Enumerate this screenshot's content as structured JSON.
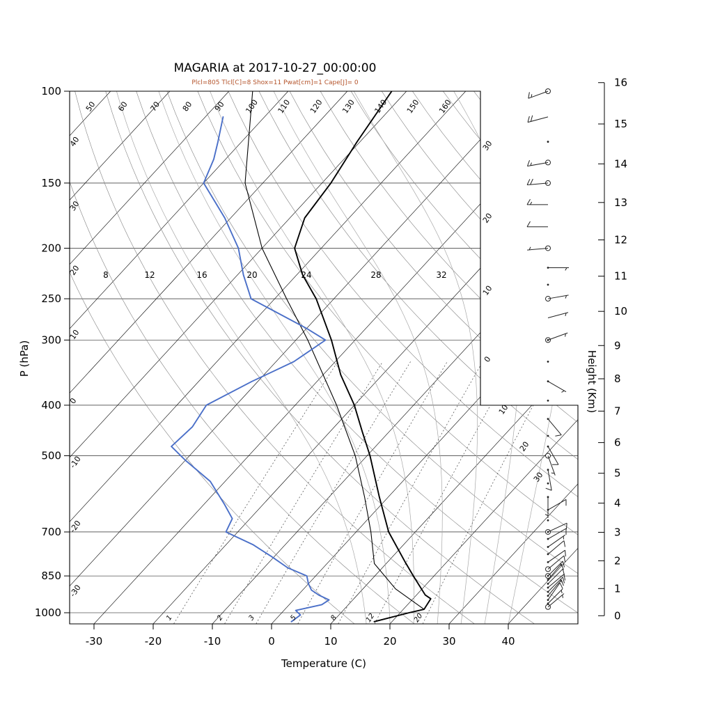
{
  "title": "MAGARIA at 2017-10-27_00:00:00",
  "subtitle": "Plcl=805 Tlcl[C]=8 Shox=11 Pwat[cm]=1 Cape[J]= 0",
  "colors": {
    "subtitle": "#b4532a",
    "temperature_trace": "#000000",
    "parcel_trace": "#000000",
    "dewpoint_trace": "#4a6fc8",
    "grid": "#000000",
    "dry_adiabat": "#808080",
    "moist_adiabat": "#a8a8a8",
    "mixing_ratio": "#444444",
    "barb": "#222222"
  },
  "chart_data": {
    "type": "line",
    "subtype": "skewt_logp_sounding",
    "station": "MAGARIA",
    "datetime": "2017-10-27_00:00:00",
    "params": {
      "Plcl": 805,
      "Tlcl_C": 8,
      "Shox": 11,
      "Pwat_cm": 1,
      "Cape_J": 0
    },
    "axes": {
      "pressure_label": "P (hPa)",
      "pressure_ticks": [
        100,
        150,
        200,
        250,
        300,
        400,
        500,
        700,
        850,
        1000
      ],
      "temperature_label": "Temperature (C)",
      "temperature_ticks": [
        -30,
        -20,
        -10,
        0,
        10,
        20,
        30,
        40
      ],
      "height_label": "Height (Km)",
      "height_ticks": [
        0,
        1,
        2,
        3,
        4,
        5,
        6,
        7,
        8,
        9,
        10,
        11,
        12,
        13,
        14,
        15,
        16
      ]
    },
    "isotherm_left_labels": [
      "40",
      "30",
      "20",
      "10",
      "0",
      "-10",
      "-20",
      "-30"
    ],
    "dry_adiabat_top_labels": [
      "50",
      "60",
      "70",
      "80",
      "90",
      "100",
      "110",
      "120",
      "130",
      "140",
      "150",
      "160"
    ],
    "right_edge_labels": [
      "30",
      "20",
      "10",
      "0",
      "10",
      "20",
      "30"
    ],
    "mid_row_labels": [
      "8",
      "12",
      "16",
      "20",
      "24",
      "28",
      "32"
    ],
    "mixing_ratio_values": [
      1,
      2,
      3,
      5,
      8,
      12,
      20
    ],
    "temperature_profile": [
      {
        "p": 1040,
        "t": 17
      },
      {
        "p": 1000,
        "t": 21.5
      },
      {
        "p": 985,
        "t": 23.5
      },
      {
        "p": 940,
        "t": 23
      },
      {
        "p": 925,
        "t": 21.5
      },
      {
        "p": 850,
        "t": 16.5
      },
      {
        "p": 800,
        "t": 13
      },
      {
        "p": 700,
        "t": 5.5
      },
      {
        "p": 600,
        "t": -1.5
      },
      {
        "p": 500,
        "t": -9.5
      },
      {
        "p": 450,
        "t": -14.5
      },
      {
        "p": 400,
        "t": -20
      },
      {
        "p": 350,
        "t": -27
      },
      {
        "p": 300,
        "t": -34
      },
      {
        "p": 250,
        "t": -43
      },
      {
        "p": 225,
        "t": -49
      },
      {
        "p": 200,
        "t": -54.5
      },
      {
        "p": 175,
        "t": -57.5
      },
      {
        "p": 150,
        "t": -58.5
      },
      {
        "p": 125,
        "t": -60.5
      },
      {
        "p": 100,
        "t": -62.5
      }
    ],
    "parcel_profile": [
      {
        "p": 985,
        "t": 23.5
      },
      {
        "p": 900,
        "t": 15.5
      },
      {
        "p": 805,
        "t": 8
      },
      {
        "p": 700,
        "t": 2.5
      },
      {
        "p": 600,
        "t": -4
      },
      {
        "p": 500,
        "t": -12
      },
      {
        "p": 400,
        "t": -23
      },
      {
        "p": 300,
        "t": -38
      },
      {
        "p": 250,
        "t": -48
      },
      {
        "p": 200,
        "t": -60
      },
      {
        "p": 150,
        "t": -73
      },
      {
        "p": 100,
        "t": -86
      }
    ],
    "dewpoint_profile": [
      {
        "p": 1040,
        "t": 3
      },
      {
        "p": 1010,
        "t": 3.5
      },
      {
        "p": 990,
        "t": 2
      },
      {
        "p": 965,
        "t": 5.5
      },
      {
        "p": 945,
        "t": 6
      },
      {
        "p": 925,
        "t": 3.5
      },
      {
        "p": 905,
        "t": 1.5
      },
      {
        "p": 880,
        "t": 0
      },
      {
        "p": 850,
        "t": -1.5
      },
      {
        "p": 820,
        "t": -6
      },
      {
        "p": 780,
        "t": -10.5
      },
      {
        "p": 740,
        "t": -15.5
      },
      {
        "p": 700,
        "t": -22
      },
      {
        "p": 660,
        "t": -23
      },
      {
        "p": 620,
        "t": -26.5
      },
      {
        "p": 560,
        "t": -32.5
      },
      {
        "p": 510,
        "t": -40
      },
      {
        "p": 480,
        "t": -44.5
      },
      {
        "p": 440,
        "t": -44
      },
      {
        "p": 400,
        "t": -45
      },
      {
        "p": 360,
        "t": -41
      },
      {
        "p": 330,
        "t": -37
      },
      {
        "p": 300,
        "t": -35
      },
      {
        "p": 285,
        "t": -40
      },
      {
        "p": 250,
        "t": -54
      },
      {
        "p": 225,
        "t": -59
      },
      {
        "p": 200,
        "t": -64
      },
      {
        "p": 175,
        "t": -71
      },
      {
        "p": 150,
        "t": -80
      },
      {
        "p": 135,
        "t": -82
      },
      {
        "p": 125,
        "t": -84
      },
      {
        "p": 112,
        "t": -87
      }
    ],
    "wind_barbs": [
      {
        "p": 100,
        "spd": 15,
        "dir": 250,
        "sym": "circle"
      },
      {
        "p": 112,
        "spd": 20,
        "dir": 255,
        "sym": "none"
      },
      {
        "p": 125,
        "spd": 0,
        "dir": 0,
        "sym": "dot"
      },
      {
        "p": 137,
        "spd": 15,
        "dir": 260,
        "sym": "circle"
      },
      {
        "p": 150,
        "spd": 20,
        "dir": 265,
        "sym": "circle"
      },
      {
        "p": 165,
        "spd": 15,
        "dir": 270,
        "sym": "none"
      },
      {
        "p": 182,
        "spd": 10,
        "dir": 270,
        "sym": "none"
      },
      {
        "p": 200,
        "spd": 5,
        "dir": 265,
        "sym": "circle"
      },
      {
        "p": 218,
        "spd": 5,
        "dir": 90,
        "sym": "dot"
      },
      {
        "p": 235,
        "spd": 0,
        "dir": 0,
        "sym": "dot"
      },
      {
        "p": 250,
        "spd": 5,
        "dir": 80,
        "sym": "circle"
      },
      {
        "p": 272,
        "spd": 5,
        "dir": 75,
        "sym": "none"
      },
      {
        "p": 300,
        "spd": 5,
        "dir": 70,
        "sym": "circle-dot"
      },
      {
        "p": 330,
        "spd": 0,
        "dir": 0,
        "sym": "dot"
      },
      {
        "p": 360,
        "spd": 5,
        "dir": 120,
        "sym": "dot"
      },
      {
        "p": 392,
        "spd": 0,
        "dir": 0,
        "sym": "dot"
      },
      {
        "p": 425,
        "spd": 10,
        "dir": 140,
        "sym": "dot"
      },
      {
        "p": 458,
        "spd": 0,
        "dir": 0,
        "sym": "dot"
      },
      {
        "p": 480,
        "spd": 10,
        "dir": 150,
        "sym": "dot"
      },
      {
        "p": 500,
        "spd": 5,
        "dir": 160,
        "sym": "circle"
      },
      {
        "p": 532,
        "spd": 10,
        "dir": 170,
        "sym": "dot"
      },
      {
        "p": 565,
        "spd": 0,
        "dir": 0,
        "sym": "dot"
      },
      {
        "p": 600,
        "spd": 5,
        "dir": 180,
        "sym": "dot"
      },
      {
        "p": 635,
        "spd": 10,
        "dir": 60,
        "sym": "dot"
      },
      {
        "p": 665,
        "spd": 0,
        "dir": 0,
        "sym": "dot"
      },
      {
        "p": 700,
        "spd": 10,
        "dir": 65,
        "sym": "circle-dot"
      },
      {
        "p": 722,
        "spd": 10,
        "dir": 60,
        "sym": "dot"
      },
      {
        "p": 748,
        "spd": 5,
        "dir": 55,
        "sym": "dot"
      },
      {
        "p": 772,
        "spd": 10,
        "dir": 50,
        "sym": "dot"
      },
      {
        "p": 800,
        "spd": 10,
        "dir": 55,
        "sym": "dot"
      },
      {
        "p": 825,
        "spd": 10,
        "dir": 50,
        "sym": "circle"
      },
      {
        "p": 850,
        "spd": 15,
        "dir": 45,
        "sym": "circle-dot"
      },
      {
        "p": 865,
        "spd": 10,
        "dir": 40,
        "sym": "dot"
      },
      {
        "p": 880,
        "spd": 10,
        "dir": 45,
        "sym": "dot"
      },
      {
        "p": 895,
        "spd": 10,
        "dir": 50,
        "sym": "dot"
      },
      {
        "p": 912,
        "spd": 15,
        "dir": 45,
        "sym": "dot"
      },
      {
        "p": 928,
        "spd": 10,
        "dir": 40,
        "sym": "dot"
      },
      {
        "p": 945,
        "spd": 10,
        "dir": 35,
        "sym": "dot"
      },
      {
        "p": 960,
        "spd": 5,
        "dir": 45,
        "sym": "dot"
      },
      {
        "p": 975,
        "spd": 5,
        "dir": 50,
        "sym": "circle"
      }
    ]
  }
}
